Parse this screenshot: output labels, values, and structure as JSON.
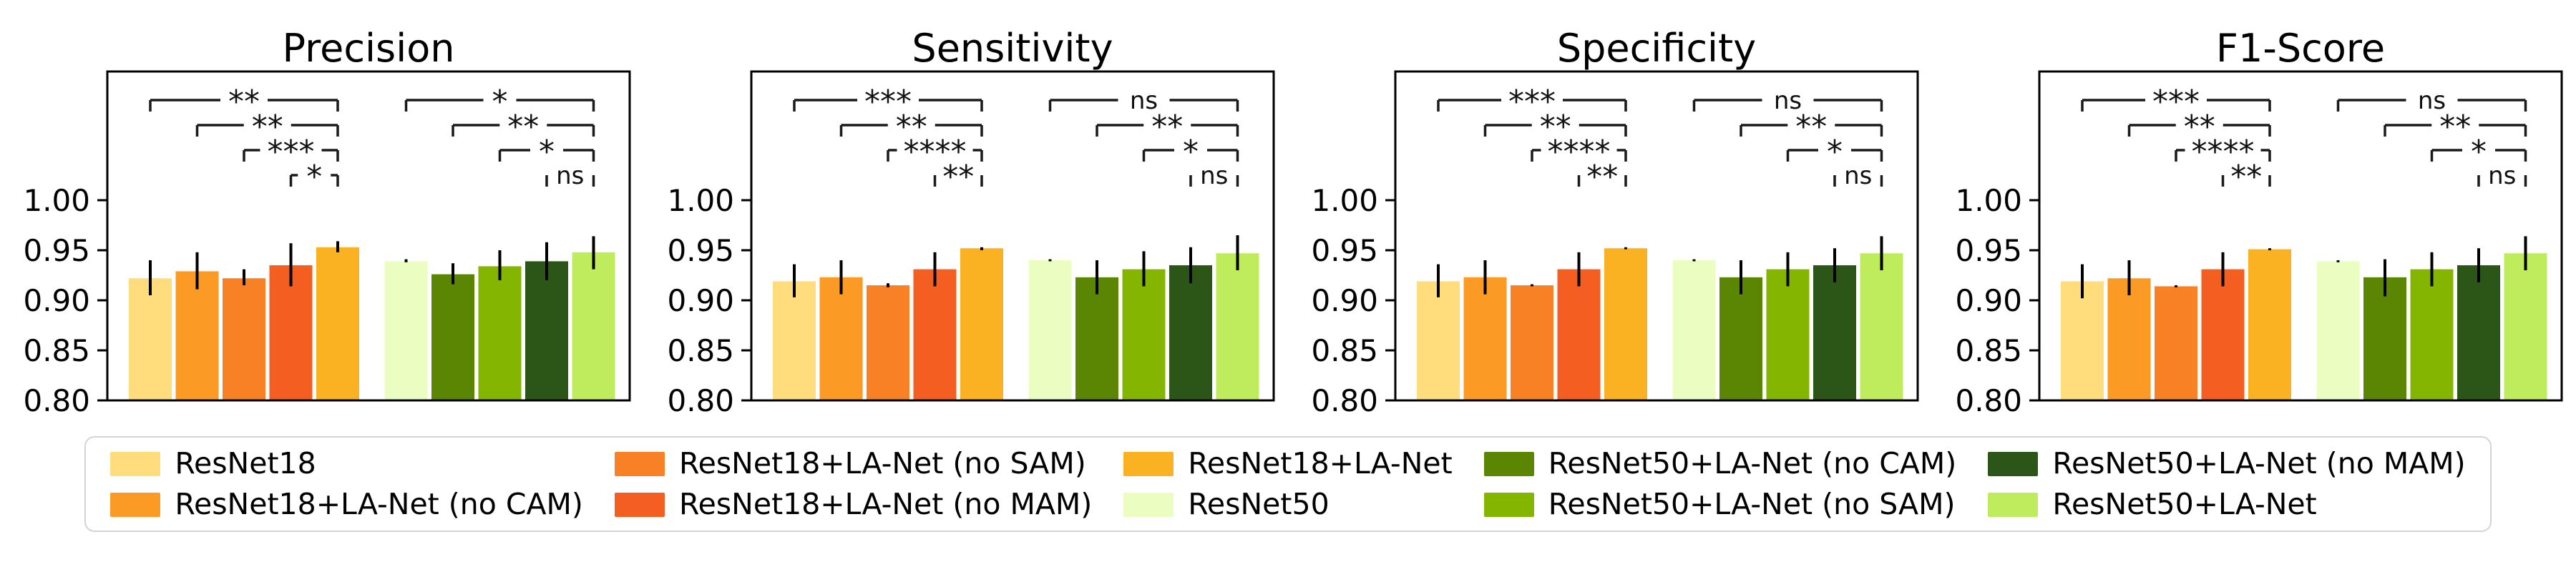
{
  "figure": {
    "background": "#ffffff",
    "frame_color": "#000000",
    "bracket_color": "#1a1a1a"
  },
  "models": [
    {
      "name": "ResNet18",
      "color": "#FFDD7D"
    },
    {
      "name": "ResNet18+LA-Net (no CAM)",
      "color": "#FC9A26"
    },
    {
      "name": "ResNet18+LA-Net (no SAM)",
      "color": "#F98125"
    },
    {
      "name": "ResNet18+LA-Net (no MAM)",
      "color": "#F45E21"
    },
    {
      "name": "ResNet18+LA-Net",
      "color": "#FAB122"
    },
    {
      "name": "ResNet50",
      "color": "#EBFDC0"
    },
    {
      "name": "ResNet50+LA-Net (no CAM)",
      "color": "#5B8603"
    },
    {
      "name": "ResNet50+LA-Net (no SAM)",
      "color": "#84B501"
    },
    {
      "name": "ResNet50+LA-Net (no MAM)",
      "color": "#2C5617"
    },
    {
      "name": "ResNet50+LA-Net",
      "color": "#BFEC5C"
    }
  ],
  "axis": {
    "ymin": 0.8,
    "ymax": 1.13,
    "grid": false,
    "ticks": [
      {
        "value": 1.0,
        "label": "1.00"
      },
      {
        "value": 0.95,
        "label": "0.95"
      },
      {
        "value": 0.9,
        "label": "0.90"
      },
      {
        "value": 0.85,
        "label": "0.85"
      },
      {
        "value": 0.8,
        "label": "0.80"
      }
    ]
  },
  "chart_data": [
    {
      "type": "bar",
      "title": "Precision",
      "xlabel": "",
      "ylabel": "",
      "ylim": [
        0.8,
        1.13
      ],
      "categories": [
        "ResNet18",
        "ResNet18+LA-Net (no CAM)",
        "ResNet18+LA-Net (no SAM)",
        "ResNet18+LA-Net (no MAM)",
        "ResNet18+LA-Net",
        "ResNet50",
        "ResNet50+LA-Net (no CAM)",
        "ResNet50+LA-Net (no SAM)",
        "ResNet50+LA-Net (no MAM)",
        "ResNet50+LA-Net"
      ],
      "values": [
        0.922,
        0.929,
        0.922,
        0.935,
        0.953,
        0.939,
        0.926,
        0.934,
        0.939,
        0.948
      ],
      "err_low": [
        0.905,
        0.911,
        0.915,
        0.914,
        0.948,
        0.938,
        0.916,
        0.92,
        0.92,
        0.931
      ],
      "err_high": [
        0.94,
        0.948,
        0.931,
        0.957,
        0.959,
        0.941,
        0.937,
        0.95,
        0.958,
        0.964
      ],
      "significance": [
        {
          "left": 0,
          "right": 4,
          "level": 1,
          "label": "**"
        },
        {
          "left": 1,
          "right": 4,
          "level": 2,
          "label": "**"
        },
        {
          "left": 2,
          "right": 4,
          "level": 3,
          "label": "***"
        },
        {
          "left": 3,
          "right": 4,
          "level": 4,
          "label": "*"
        },
        {
          "left": 5,
          "right": 9,
          "level": 1,
          "label": "*"
        },
        {
          "left": 6,
          "right": 9,
          "level": 2,
          "label": "**"
        },
        {
          "left": 7,
          "right": 9,
          "level": 3,
          "label": "*"
        },
        {
          "left": 8,
          "right": 9,
          "level": 4,
          "label": "ns"
        }
      ]
    },
    {
      "type": "bar",
      "title": "Sensitivity",
      "xlabel": "",
      "ylabel": "",
      "ylim": [
        0.8,
        1.13
      ],
      "categories": [
        "ResNet18",
        "ResNet18+LA-Net (no CAM)",
        "ResNet18+LA-Net (no SAM)",
        "ResNet18+LA-Net (no MAM)",
        "ResNet18+LA-Net",
        "ResNet50",
        "ResNet50+LA-Net (no CAM)",
        "ResNet50+LA-Net (no SAM)",
        "ResNet50+LA-Net (no MAM)",
        "ResNet50+LA-Net"
      ],
      "values": [
        0.919,
        0.923,
        0.915,
        0.931,
        0.952,
        0.94,
        0.923,
        0.931,
        0.935,
        0.947
      ],
      "err_low": [
        0.903,
        0.906,
        0.913,
        0.914,
        0.95,
        0.939,
        0.906,
        0.914,
        0.917,
        0.93
      ],
      "err_high": [
        0.936,
        0.94,
        0.917,
        0.948,
        0.953,
        0.941,
        0.94,
        0.949,
        0.953,
        0.965
      ],
      "significance": [
        {
          "left": 0,
          "right": 4,
          "level": 1,
          "label": "***"
        },
        {
          "left": 1,
          "right": 4,
          "level": 2,
          "label": "**"
        },
        {
          "left": 2,
          "right": 4,
          "level": 3,
          "label": "****"
        },
        {
          "left": 3,
          "right": 4,
          "level": 4,
          "label": "**"
        },
        {
          "left": 5,
          "right": 9,
          "level": 1,
          "label": "ns"
        },
        {
          "left": 6,
          "right": 9,
          "level": 2,
          "label": "**"
        },
        {
          "left": 7,
          "right": 9,
          "level": 3,
          "label": "*"
        },
        {
          "left": 8,
          "right": 9,
          "level": 4,
          "label": "ns"
        }
      ]
    },
    {
      "type": "bar",
      "title": "Specificity",
      "xlabel": "",
      "ylabel": "",
      "ylim": [
        0.8,
        1.13
      ],
      "categories": [
        "ResNet18",
        "ResNet18+LA-Net (no CAM)",
        "ResNet18+LA-Net (no SAM)",
        "ResNet18+LA-Net (no MAM)",
        "ResNet18+LA-Net",
        "ResNet50",
        "ResNet50+LA-Net (no CAM)",
        "ResNet50+LA-Net (no SAM)",
        "ResNet50+LA-Net (no MAM)",
        "ResNet50+LA-Net"
      ],
      "values": [
        0.919,
        0.923,
        0.915,
        0.931,
        0.952,
        0.94,
        0.923,
        0.931,
        0.935,
        0.947
      ],
      "err_low": [
        0.903,
        0.906,
        0.914,
        0.914,
        0.951,
        0.939,
        0.906,
        0.914,
        0.918,
        0.93
      ],
      "err_high": [
        0.936,
        0.94,
        0.916,
        0.948,
        0.953,
        0.941,
        0.94,
        0.948,
        0.952,
        0.964
      ],
      "significance": [
        {
          "left": 0,
          "right": 4,
          "level": 1,
          "label": "***"
        },
        {
          "left": 1,
          "right": 4,
          "level": 2,
          "label": "**"
        },
        {
          "left": 2,
          "right": 4,
          "level": 3,
          "label": "****"
        },
        {
          "left": 3,
          "right": 4,
          "level": 4,
          "label": "**"
        },
        {
          "left": 5,
          "right": 9,
          "level": 1,
          "label": "ns"
        },
        {
          "left": 6,
          "right": 9,
          "level": 2,
          "label": "**"
        },
        {
          "left": 7,
          "right": 9,
          "level": 3,
          "label": "*"
        },
        {
          "left": 8,
          "right": 9,
          "level": 4,
          "label": "ns"
        }
      ]
    },
    {
      "type": "bar",
      "title": "F1-Score",
      "xlabel": "",
      "ylabel": "",
      "ylim": [
        0.8,
        1.13
      ],
      "categories": [
        "ResNet18",
        "ResNet18+LA-Net (no CAM)",
        "ResNet18+LA-Net (no SAM)",
        "ResNet18+LA-Net (no MAM)",
        "ResNet18+LA-Net",
        "ResNet50",
        "ResNet50+LA-Net (no CAM)",
        "ResNet50+LA-Net (no SAM)",
        "ResNet50+LA-Net (no MAM)",
        "ResNet50+LA-Net"
      ],
      "values": [
        0.919,
        0.922,
        0.914,
        0.931,
        0.951,
        0.939,
        0.923,
        0.931,
        0.935,
        0.947
      ],
      "err_low": [
        0.902,
        0.905,
        0.913,
        0.914,
        0.95,
        0.938,
        0.904,
        0.914,
        0.918,
        0.93
      ],
      "err_high": [
        0.936,
        0.94,
        0.915,
        0.948,
        0.952,
        0.94,
        0.941,
        0.948,
        0.952,
        0.964
      ],
      "significance": [
        {
          "left": 0,
          "right": 4,
          "level": 1,
          "label": "***"
        },
        {
          "left": 1,
          "right": 4,
          "level": 2,
          "label": "**"
        },
        {
          "left": 2,
          "right": 4,
          "level": 3,
          "label": "****"
        },
        {
          "left": 3,
          "right": 4,
          "level": 4,
          "label": "**"
        },
        {
          "left": 5,
          "right": 9,
          "level": 1,
          "label": "ns"
        },
        {
          "left": 6,
          "right": 9,
          "level": 2,
          "label": "**"
        },
        {
          "left": 7,
          "right": 9,
          "level": 3,
          "label": "*"
        },
        {
          "left": 8,
          "right": 9,
          "level": 4,
          "label": "ns"
        }
      ]
    }
  ]
}
